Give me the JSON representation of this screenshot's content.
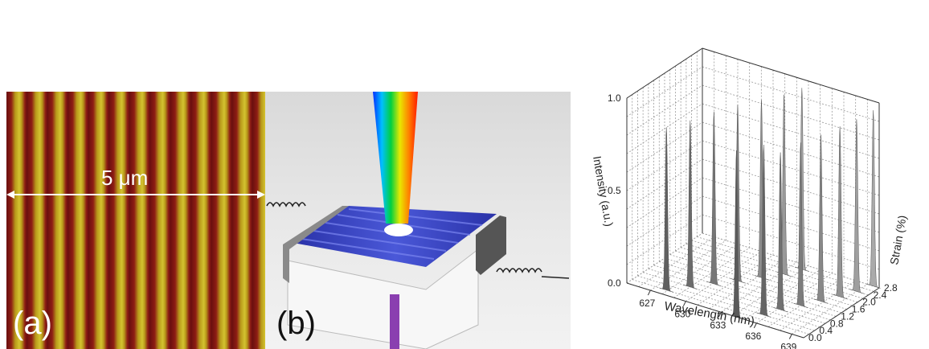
{
  "panel_a": {
    "label": "(a)",
    "scale_text": "5  μm"
  },
  "panel_b": {
    "label": "(b)"
  },
  "chart_data": {
    "type": "3d-waterfall",
    "xlabel": "Wavelength (nm)",
    "ylabel": "Intensity (a.u.)",
    "zlabel": "Strain (%)",
    "x_ticks": [
      "627",
      "630",
      "633",
      "636",
      "639"
    ],
    "y_ticks": [
      "0.0",
      "0.5",
      "1.0"
    ],
    "z_ticks": [
      "0.0",
      "0.4",
      "0.8",
      "1.2",
      "1.6",
      "2.0",
      "2.4",
      "2.8"
    ],
    "xlim": [
      625,
      640
    ],
    "ylim": [
      0,
      1.0
    ],
    "zlim": [
      0,
      2.8
    ],
    "grid": true,
    "peaks": [
      {
        "strain": 0.0,
        "wavelength": 634.3,
        "intensity": 0.9
      },
      {
        "strain": 0.2,
        "wavelength": 627.9,
        "intensity": 0.88
      },
      {
        "strain": 0.4,
        "wavelength": 635.7,
        "intensity": 0.92
      },
      {
        "strain": 0.6,
        "wavelength": 629.0,
        "intensity": 0.9
      },
      {
        "strain": 0.8,
        "wavelength": 636.2,
        "intensity": 0.85
      },
      {
        "strain": 1.0,
        "wavelength": 630.1,
        "intensity": 0.93
      },
      {
        "strain": 1.2,
        "wavelength": 637.0,
        "intensity": 0.88
      },
      {
        "strain": 1.4,
        "wavelength": 631.2,
        "intensity": 0.95
      },
      {
        "strain": 1.6,
        "wavelength": 637.8,
        "intensity": 0.9
      },
      {
        "strain": 1.8,
        "wavelength": 632.3,
        "intensity": 0.96
      },
      {
        "strain": 2.0,
        "wavelength": 638.5,
        "intensity": 0.92
      },
      {
        "strain": 2.2,
        "wavelength": 633.3,
        "intensity": 0.97
      },
      {
        "strain": 2.4,
        "wavelength": 639.0,
        "intensity": 0.93
      },
      {
        "strain": 2.6,
        "wavelength": 633.9,
        "intensity": 0.98
      },
      {
        "strain": 2.8,
        "wavelength": 639.5,
        "intensity": 0.95
      }
    ]
  }
}
